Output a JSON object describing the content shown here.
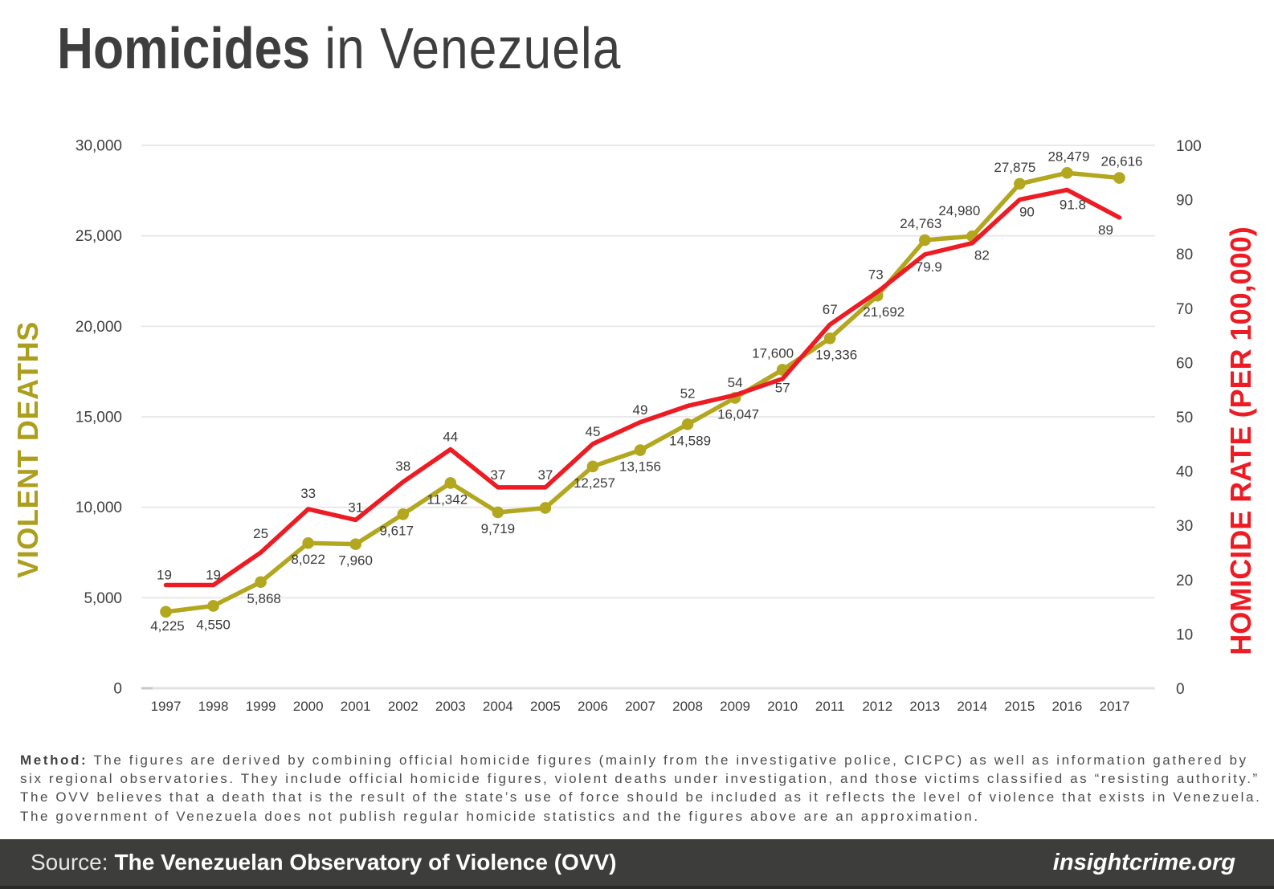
{
  "title": {
    "bold": "Homicides",
    "rest": " in Venezuela"
  },
  "chart_data": {
    "type": "line",
    "title": "Homicides in Venezuela",
    "categories": [
      "1997",
      "1998",
      "1999",
      "2000",
      "2001",
      "2002",
      "2003",
      "2004",
      "2005",
      "2006",
      "2007",
      "2008",
      "2009",
      "2010",
      "2011",
      "2012",
      "2013",
      "2014",
      "2015",
      "2016",
      "2017"
    ],
    "grid": "horizontal",
    "legend": "none",
    "left_axis": {
      "title": "VIOLENT DEATHS",
      "min": 0,
      "max": 30000,
      "tick_values": [
        0,
        5000,
        10000,
        15000,
        20000,
        25000,
        30000
      ],
      "tick_labels": [
        "0",
        "5,000",
        "10,000",
        "15,000",
        "20,000",
        "25,000",
        "30,000"
      ],
      "color": "#ac9f1e"
    },
    "right_axis": {
      "title": "HOMICIDE RATE (PER 100,000)",
      "min": 0,
      "max": 100,
      "tick_values": [
        0,
        10,
        20,
        30,
        40,
        50,
        60,
        70,
        80,
        90,
        100
      ],
      "tick_labels": [
        "0",
        "10",
        "20",
        "30",
        "40",
        "50",
        "60",
        "70",
        "80",
        "90",
        "100"
      ],
      "color": "#ed1c24"
    },
    "series": [
      {
        "name": "Violent Deaths",
        "axis": "left",
        "color": "#b2a71f",
        "marker": "circle",
        "values": [
          4225,
          4550,
          5868,
          8022,
          7960,
          9617,
          11342,
          9719,
          9964,
          12257,
          13156,
          14589,
          16047,
          17600,
          19336,
          21692,
          24763,
          24980,
          27875,
          28479,
          26616
        ],
        "labels": [
          "4,225",
          "4,550",
          "5,868",
          "8,022",
          "7,960",
          "9,617",
          "11,342",
          "9,719",
          null,
          "12,257",
          "13,156",
          "14,589",
          "16,047",
          "17,600",
          "19,336",
          "21,692",
          "24,763",
          "24,980",
          "27,875",
          "28,479",
          "26,616"
        ],
        "label_pos": [
          "below",
          "below",
          "below",
          "below",
          "below",
          "below",
          "below",
          "below",
          null,
          "below",
          "below",
          "below",
          "below",
          "above",
          "below",
          "below",
          "above",
          "above",
          "above",
          "above",
          "above"
        ],
        "label_dx": [
          2,
          0,
          4,
          0,
          0,
          -8,
          -4,
          0,
          0,
          2,
          0,
          3,
          4,
          -12,
          8,
          8,
          -5,
          -16,
          -6,
          2,
          9
        ],
        "label_dy": [
          -3,
          3,
          0,
          0,
          0,
          0,
          0,
          0,
          0,
          0,
          0,
          0,
          0,
          0,
          0,
          0,
          0,
          -11,
          0,
          0,
          0
        ],
        "plot_values": [
          null,
          null,
          null,
          null,
          null,
          null,
          null,
          null,
          null,
          null,
          null,
          null,
          null,
          null,
          null,
          null,
          null,
          null,
          null,
          null,
          28200
        ]
      },
      {
        "name": "Homicide Rate",
        "axis": "right",
        "color": "#ed1c24",
        "marker": "none",
        "values": [
          19,
          19,
          25,
          33,
          31,
          38,
          44,
          37,
          37,
          45,
          49,
          52,
          54,
          57,
          67,
          73,
          79.9,
          82,
          90,
          91.8,
          89
        ],
        "labels": [
          "19",
          "19",
          "25",
          "33",
          "31",
          "38",
          "44",
          "37",
          "37",
          "45",
          "49",
          "52",
          "54",
          "57",
          "67",
          "73",
          "79.9",
          "82",
          "90",
          "91.8",
          "89"
        ],
        "label_pos": [
          "above",
          "above",
          "above",
          "above",
          "above",
          "above",
          "above",
          "above",
          "above",
          "above",
          "above",
          "above",
          "above",
          "below",
          "above",
          "above",
          "below",
          "below",
          "below",
          "below",
          "below"
        ],
        "label_dx": [
          -2,
          0,
          0,
          0,
          0,
          0,
          0,
          0,
          0,
          0,
          0,
          0,
          0,
          0,
          0,
          -2,
          5,
          12,
          9,
          7,
          -11
        ],
        "label_dy": [
          3,
          3,
          -8,
          -4,
          0,
          -4,
          0,
          0,
          0,
          0,
          0,
          0,
          0,
          -4,
          -3,
          -6,
          0,
          0,
          0,
          3,
          0
        ],
        "plot_values": [
          null,
          null,
          null,
          null,
          null,
          null,
          null,
          null,
          null,
          null,
          null,
          null,
          null,
          null,
          null,
          null,
          null,
          null,
          null,
          null,
          86.7
        ]
      }
    ]
  },
  "method": {
    "label": "Method:",
    "lines": [
      " The figures are derived by combining official homicide figures (mainly from the investigative police, CICPC) as well as information gathered by",
      "six regional observatories. They include official homicide figures, violent deaths under investigation, and those victims classified as “resisting authority.”",
      "The OVV believes that a death that is the result of the state’s use of force should be included as it reflects the level of violence that exists in Venezuela.",
      "The government of Venezuela does not publish regular homicide statistics and the figures above are an approximation."
    ]
  },
  "footer": {
    "source_label": "Source:",
    "source_name": "The Venezuelan Observatory of Violence (OVV)",
    "site": "insightcrime.org"
  }
}
